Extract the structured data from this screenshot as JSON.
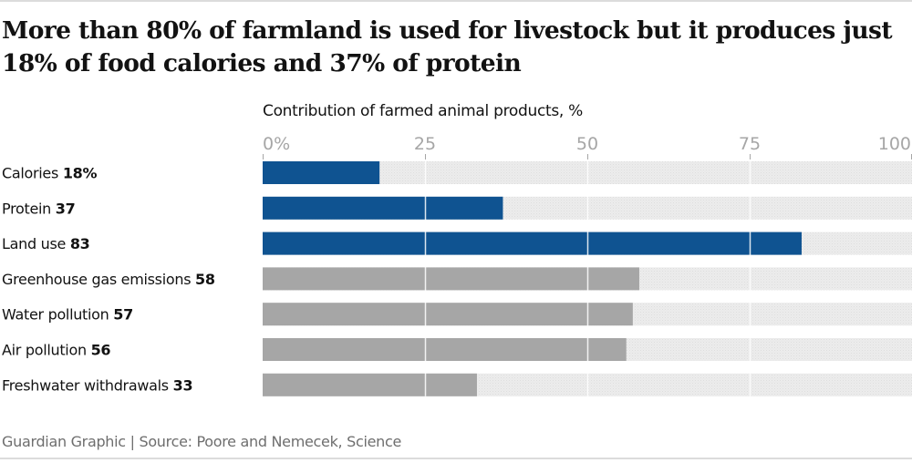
{
  "header": {
    "title": "More than 80% of farmland is used for livestock but it produces just 18% of food calories and 37% of protein",
    "subtitle": "Contribution of farmed animal products, %"
  },
  "footer": {
    "source": "Guardian Graphic | Source: Poore and Nemecek, Science"
  },
  "colors": {
    "highlight": "#0f5391",
    "other": "#a6a6a6",
    "track": "#ebebeb",
    "grid": "#ffffff",
    "tick": "#a6a6a6"
  },
  "chart_data": {
    "type": "bar",
    "orientation": "horizontal",
    "title": "More than 80% of farmland is used for livestock but it produces just 18% of food calories and 37% of protein",
    "xlabel": "Contribution of farmed animal products, %",
    "ylabel": "",
    "xlim": [
      0,
      100
    ],
    "xticks": [
      0,
      25,
      50,
      75,
      100
    ],
    "xtick_labels": [
      "0%",
      "25",
      "50",
      "75",
      "100"
    ],
    "grid": true,
    "categories": [
      "Calories",
      "Protein",
      "Land use",
      "Greenhouse gas emissions",
      "Water pollution",
      "Air pollution",
      "Freshwater withdrawals"
    ],
    "values": [
      18,
      37,
      83,
      58,
      57,
      56,
      33
    ],
    "value_labels": [
      "18%",
      "37",
      "83",
      "58",
      "57",
      "56",
      "33"
    ],
    "highlighted": [
      true,
      true,
      true,
      false,
      false,
      false,
      false
    ]
  }
}
